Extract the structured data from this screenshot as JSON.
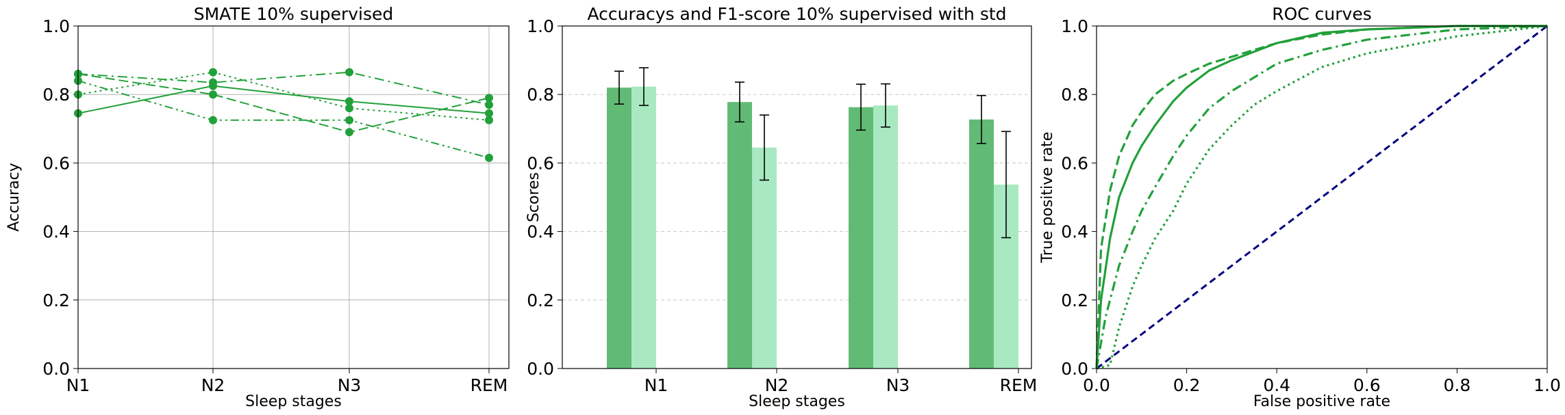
{
  "chart_data": [
    {
      "type": "line",
      "title": "SMATE 10% supervised",
      "xlabel": "Sleep stages",
      "ylabel": "Accuracy",
      "categories": [
        "N1",
        "N2",
        "N3",
        "REM"
      ],
      "ylim": [
        0.0,
        1.0
      ],
      "yticks": [
        "0.0",
        "0.2",
        "0.4",
        "0.6",
        "0.8",
        "1.0"
      ],
      "grid": true,
      "color": "#22a03a",
      "series": [
        {
          "style": "solid",
          "values": [
            0.745,
            0.825,
            0.78,
            0.745
          ]
        },
        {
          "style": "dashed",
          "values": [
            0.86,
            0.8,
            0.69,
            0.79
          ]
        },
        {
          "style": "dashdot",
          "values": [
            0.86,
            0.835,
            0.865,
            0.77
          ]
        },
        {
          "style": "dotted",
          "values": [
            0.8,
            0.865,
            0.76,
            0.725
          ]
        },
        {
          "style": "dashdotdot",
          "values": [
            0.84,
            0.725,
            0.725,
            0.615
          ]
        }
      ]
    },
    {
      "type": "bar",
      "title": "Accuracys and F1-score 10% supervised with std",
      "xlabel": "Sleep stages",
      "ylabel": "Scores",
      "categories": [
        "N1",
        "N2",
        "N3",
        "REM"
      ],
      "ylim": [
        0.0,
        1.0
      ],
      "yticks": [
        "0.0",
        "0.2",
        "0.4",
        "0.6",
        "0.8",
        "1.0"
      ],
      "grid": "y-dashed",
      "series": [
        {
          "color": "#62bb75",
          "values": [
            0.82,
            0.778,
            0.763,
            0.727
          ],
          "std": [
            0.048,
            0.058,
            0.067,
            0.07
          ]
        },
        {
          "color": "#a8e9c1",
          "values": [
            0.823,
            0.645,
            0.768,
            0.537
          ],
          "std": [
            0.055,
            0.095,
            0.063,
            0.155
          ]
        }
      ]
    },
    {
      "type": "line",
      "title": "ROC curves",
      "xlabel": "False positive rate",
      "ylabel": "True positive rate",
      "xlim": [
        0.0,
        1.0
      ],
      "ylim": [
        0.0,
        1.0
      ],
      "xticks": [
        "0.0",
        "0.2",
        "0.4",
        "0.6",
        "0.8",
        "1.0"
      ],
      "yticks": [
        "0.0",
        "0.2",
        "0.4",
        "0.6",
        "0.8",
        "1.0"
      ],
      "grid": false,
      "color": "#22a03a",
      "diagonal_color": "#000080",
      "series": [
        {
          "style": "dashed",
          "x": [
            0,
            0.01,
            0.03,
            0.05,
            0.08,
            0.1,
            0.13,
            0.17,
            0.2,
            0.25,
            0.3,
            0.4,
            0.5,
            0.6,
            0.8,
            1.0
          ],
          "y": [
            0,
            0.35,
            0.52,
            0.62,
            0.71,
            0.75,
            0.8,
            0.84,
            0.86,
            0.89,
            0.91,
            0.95,
            0.975,
            0.99,
            1.0,
            1.0
          ]
        },
        {
          "style": "solid",
          "x": [
            0,
            0.01,
            0.03,
            0.05,
            0.08,
            0.1,
            0.13,
            0.17,
            0.2,
            0.25,
            0.3,
            0.4,
            0.5,
            0.6,
            0.8,
            1.0
          ],
          "y": [
            0,
            0.2,
            0.38,
            0.5,
            0.6,
            0.65,
            0.71,
            0.78,
            0.82,
            0.87,
            0.9,
            0.95,
            0.98,
            0.99,
            1.0,
            1.0
          ]
        },
        {
          "style": "dashdot",
          "x": [
            0,
            0.02,
            0.05,
            0.08,
            0.1,
            0.13,
            0.17,
            0.2,
            0.25,
            0.3,
            0.35,
            0.4,
            0.5,
            0.6,
            0.8,
            1.0
          ],
          "y": [
            0,
            0.15,
            0.3,
            0.4,
            0.46,
            0.53,
            0.62,
            0.68,
            0.76,
            0.81,
            0.85,
            0.89,
            0.93,
            0.96,
            0.99,
            1.0
          ]
        },
        {
          "style": "dotted",
          "x": [
            0,
            0.03,
            0.05,
            0.08,
            0.1,
            0.13,
            0.17,
            0.2,
            0.25,
            0.3,
            0.35,
            0.4,
            0.5,
            0.6,
            0.8,
            1.0
          ],
          "y": [
            0,
            0.01,
            0.12,
            0.24,
            0.3,
            0.38,
            0.46,
            0.54,
            0.64,
            0.71,
            0.77,
            0.81,
            0.88,
            0.92,
            0.97,
            1.0
          ]
        }
      ]
    }
  ]
}
